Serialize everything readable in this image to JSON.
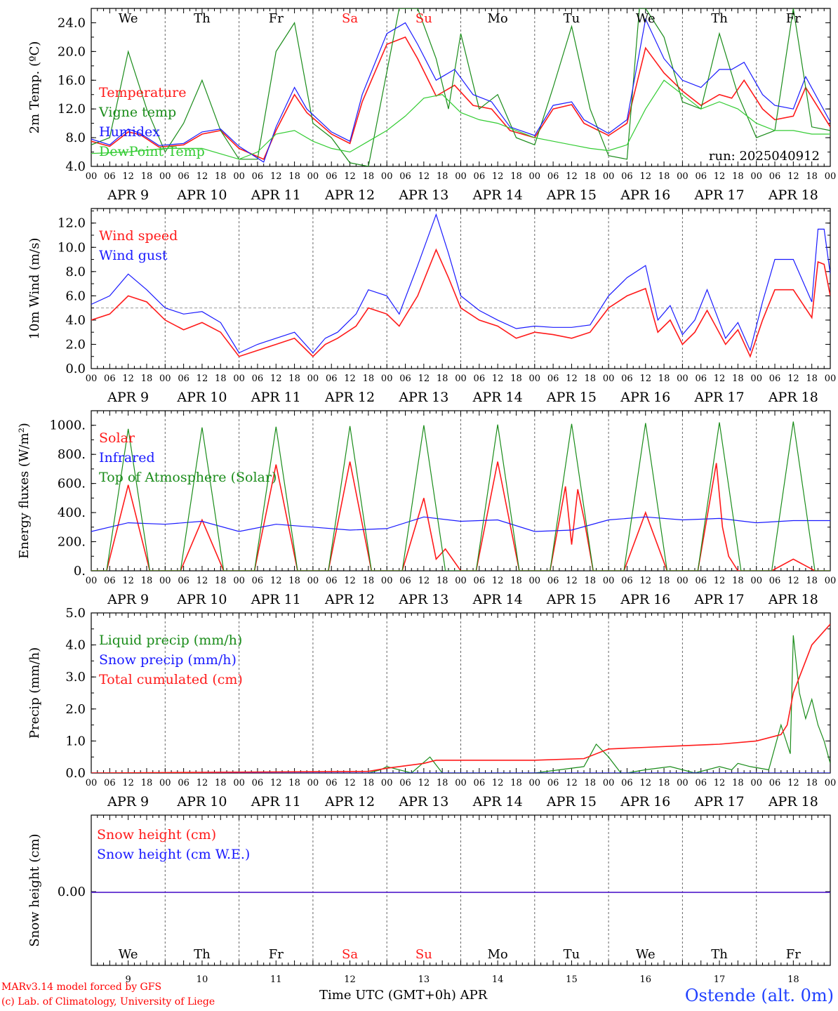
{
  "colors": {
    "red": "#ff1a1a",
    "green": "#1a8c1a",
    "blue": "#1a1aff",
    "lightgreen": "#33cc33",
    "axis": "#000000",
    "grid": "#666666"
  },
  "time_axis": {
    "hour_ticks": [
      "00",
      "06",
      "12",
      "18"
    ],
    "date_labels": [
      "APR  9",
      "APR 10",
      "APR 11",
      "APR 12",
      "APR 13",
      "APR 14",
      "APR 15",
      "APR 16",
      "APR 17",
      "APR 18"
    ],
    "weekdays": [
      "We",
      "Th",
      "Fr",
      "Sa",
      "Su",
      "Mo",
      "Tu",
      "We",
      "Th",
      "Fr"
    ],
    "weekend_index": [
      3,
      4
    ],
    "day_numbers": [
      "9",
      "10",
      "11",
      "12",
      "13",
      "14",
      "15",
      "16",
      "17",
      "18"
    ],
    "label": "Time UTC (GMT+0h)",
    "month": "APR"
  },
  "footer": {
    "model": "MARv3.14 model forced by GFS",
    "lab": "(c) Lab. of Climatology, University of Liege",
    "station": "Ostende (alt. 0m)"
  },
  "chart_data": [
    {
      "type": "line",
      "ylabel": "2m Temp. (ºC)",
      "ylim": [
        4,
        26
      ],
      "yticks": [
        "4.0",
        "8.0",
        "12.0",
        "16.0",
        "20.0",
        "24.0"
      ],
      "annotation": "run: 2025040912",
      "series": [
        {
          "name": "Temperature",
          "color": "red",
          "x": [
            0,
            6,
            12,
            16,
            22,
            30,
            36,
            42,
            48,
            56,
            60,
            66,
            70,
            78,
            84,
            88,
            96,
            102,
            106,
            112,
            118,
            124,
            130,
            136,
            144,
            150,
            156,
            160,
            168,
            174,
            180,
            186,
            192,
            198,
            204,
            208,
            212,
            218,
            222,
            228,
            232,
            240
          ],
          "y": [
            7.5,
            6.8,
            8.8,
            8.4,
            6.7,
            7.0,
            8.5,
            9.0,
            6.5,
            5.0,
            9.0,
            14.0,
            11.5,
            8.5,
            7.2,
            13.0,
            21.0,
            22.0,
            19.0,
            13.8,
            15.3,
            12.5,
            12.0,
            9.0,
            8.0,
            12.0,
            12.6,
            10.0,
            8.3,
            10.0,
            20.5,
            17.0,
            14.5,
            12.5,
            14.0,
            13.5,
            16.0,
            12.0,
            10.5,
            11.0,
            15.0,
            9.5
          ]
        },
        {
          "name": "Vigne temp",
          "color": "green",
          "x": [
            0,
            6,
            12,
            18,
            24,
            30,
            36,
            42,
            48,
            54,
            60,
            66,
            72,
            78,
            84,
            90,
            100,
            106,
            112,
            116,
            120,
            126,
            132,
            138,
            144,
            150,
            156,
            162,
            168,
            174,
            178,
            180,
            186,
            192,
            198,
            204,
            210,
            216,
            222,
            228,
            234,
            240
          ],
          "y": [
            7.0,
            8.0,
            20.0,
            12.0,
            6.0,
            10.0,
            16.0,
            9.0,
            5.0,
            5.0,
            20.0,
            24.0,
            10.0,
            8.0,
            4.5,
            4.0,
            26.0,
            26.0,
            19.0,
            12.0,
            22.5,
            12.0,
            14.0,
            8.0,
            7.0,
            15.0,
            23.5,
            12.0,
            5.5,
            5.0,
            26.0,
            26.0,
            22.0,
            13.0,
            12.0,
            22.5,
            14.0,
            8.0,
            9.0,
            26.0,
            9.5,
            9.0
          ]
        },
        {
          "name": "Humidex",
          "color": "blue",
          "x": [
            0,
            6,
            12,
            16,
            22,
            30,
            36,
            42,
            48,
            56,
            60,
            66,
            70,
            78,
            84,
            88,
            96,
            102,
            106,
            112,
            118,
            124,
            130,
            136,
            144,
            150,
            156,
            160,
            168,
            174,
            180,
            186,
            192,
            198,
            204,
            208,
            212,
            218,
            222,
            228,
            232,
            240
          ],
          "y": [
            7.8,
            7.0,
            9.2,
            8.6,
            6.9,
            7.2,
            8.8,
            9.2,
            6.8,
            4.6,
            9.5,
            15.0,
            12.0,
            8.8,
            7.5,
            14.0,
            22.5,
            24.0,
            21.0,
            16.0,
            17.5,
            14.0,
            13.0,
            9.5,
            8.3,
            12.5,
            13.0,
            10.5,
            8.6,
            10.5,
            24.5,
            19.0,
            16.0,
            15.0,
            17.5,
            17.5,
            18.5,
            14.0,
            12.5,
            12.0,
            16.5,
            10.2
          ]
        },
        {
          "name": "DewPoint Temp",
          "color": "lightgreen",
          "x": [
            0,
            12,
            24,
            36,
            48,
            54,
            60,
            66,
            72,
            78,
            84,
            90,
            96,
            102,
            108,
            114,
            120,
            126,
            132,
            138,
            144,
            150,
            156,
            162,
            168,
            174,
            180,
            186,
            192,
            198,
            204,
            210,
            216,
            222,
            228,
            234,
            240
          ],
          "y": [
            5.8,
            6.0,
            6.5,
            6.5,
            5.0,
            6.0,
            8.5,
            9.0,
            7.5,
            6.5,
            6.0,
            7.5,
            9.0,
            11.0,
            13.5,
            14.0,
            11.5,
            10.5,
            10.0,
            9.0,
            8.0,
            7.5,
            7.0,
            6.5,
            6.2,
            7.0,
            12.0,
            16.0,
            14.0,
            12.0,
            13.0,
            12.0,
            10.0,
            9.0,
            9.0,
            8.5,
            8.5
          ]
        }
      ]
    },
    {
      "type": "line",
      "ylabel": "10m Wind (m/s)",
      "ylim": [
        0,
        13.2
      ],
      "yticks": [
        "0.0",
        "2.0",
        "4.0",
        "6.0",
        "8.0",
        "10.0",
        "12.0"
      ],
      "reference_line": 5.0,
      "series": [
        {
          "name": "Wind speed",
          "color": "red",
          "x": [
            0,
            6,
            12,
            18,
            24,
            30,
            36,
            42,
            48,
            54,
            60,
            66,
            72,
            76,
            80,
            86,
            90,
            96,
            100,
            106,
            112,
            116,
            120,
            126,
            132,
            138,
            144,
            150,
            156,
            162,
            168,
            174,
            180,
            184,
            188,
            192,
            196,
            200,
            206,
            210,
            214,
            218,
            222,
            228,
            234,
            236,
            238,
            240
          ],
          "y": [
            4.0,
            4.5,
            6.0,
            5.5,
            4.0,
            3.2,
            3.8,
            3.0,
            1.0,
            1.5,
            2.0,
            2.5,
            1.0,
            2.0,
            2.5,
            3.5,
            5.0,
            4.5,
            3.5,
            6.0,
            9.8,
            7.5,
            5.0,
            4.0,
            3.5,
            2.5,
            3.0,
            2.8,
            2.5,
            3.0,
            5.0,
            6.0,
            6.6,
            3.0,
            4.0,
            2.0,
            3.0,
            4.8,
            2.0,
            3.2,
            1.0,
            4.0,
            6.5,
            6.5,
            4.2,
            8.8,
            8.6,
            6.0
          ]
        },
        {
          "name": "Wind gust",
          "color": "blue",
          "x": [
            0,
            6,
            12,
            18,
            24,
            30,
            36,
            42,
            48,
            54,
            60,
            66,
            72,
            76,
            80,
            86,
            90,
            96,
            100,
            106,
            112,
            116,
            120,
            126,
            132,
            138,
            144,
            150,
            156,
            162,
            168,
            174,
            180,
            184,
            188,
            192,
            196,
            200,
            206,
            210,
            214,
            218,
            222,
            228,
            234,
            236,
            238,
            240
          ],
          "y": [
            5.3,
            6.0,
            7.8,
            6.5,
            5.0,
            4.5,
            4.7,
            3.8,
            1.3,
            2.0,
            2.5,
            3.0,
            1.3,
            2.5,
            3.0,
            4.5,
            6.5,
            6.0,
            4.5,
            8.5,
            12.7,
            9.5,
            6.0,
            4.8,
            4.0,
            3.3,
            3.5,
            3.4,
            3.4,
            3.6,
            6.0,
            7.5,
            8.5,
            4.0,
            5.2,
            2.8,
            4.0,
            6.5,
            2.5,
            3.8,
            1.5,
            5.5,
            9.0,
            9.0,
            5.5,
            11.5,
            11.5,
            7.8
          ]
        }
      ]
    },
    {
      "type": "line",
      "ylabel": "Energy fluxes (W/m²)",
      "ylim": [
        0,
        1100
      ],
      "yticks": [
        "0.",
        "200.",
        "400.",
        "600.",
        "800.",
        "1000."
      ],
      "series": [
        {
          "name": "Solar",
          "color": "red",
          "x": [
            0,
            5,
            12,
            19,
            24,
            29,
            36,
            43,
            48,
            53,
            60,
            67,
            72,
            77,
            84,
            91,
            96,
            101,
            108,
            112,
            115,
            120,
            125,
            132,
            139,
            144,
            149,
            154,
            156,
            158,
            160,
            163,
            168,
            173,
            180,
            187,
            192,
            197,
            203,
            205,
            207,
            210,
            216,
            221,
            228,
            235,
            240
          ],
          "y": [
            0,
            0,
            590,
            0,
            0,
            0,
            350,
            0,
            0,
            0,
            730,
            0,
            0,
            0,
            750,
            0,
            0,
            0,
            500,
            80,
            150,
            0,
            0,
            750,
            0,
            0,
            0,
            580,
            180,
            560,
            360,
            0,
            0,
            0,
            400,
            0,
            0,
            0,
            740,
            300,
            100,
            0,
            0,
            0,
            80,
            0,
            0
          ]
        },
        {
          "name": "Infrared",
          "color": "blue",
          "x": [
            0,
            12,
            24,
            36,
            48,
            60,
            72,
            84,
            96,
            108,
            120,
            132,
            144,
            156,
            168,
            180,
            192,
            204,
            216,
            228,
            240
          ],
          "y": [
            270,
            330,
            320,
            340,
            270,
            320,
            300,
            280,
            290,
            370,
            340,
            350,
            270,
            280,
            350,
            370,
            350,
            360,
            330,
            345,
            345
          ]
        },
        {
          "name": "Top of Atmosphere (Solar)",
          "color": "green",
          "x": [
            0,
            5,
            12,
            19,
            24,
            29,
            36,
            43,
            48,
            53,
            60,
            67,
            72,
            77,
            84,
            91,
            96,
            101,
            108,
            115,
            120,
            125,
            132,
            139,
            144,
            149,
            156,
            163,
            168,
            173,
            180,
            187,
            192,
            197,
            204,
            211,
            216,
            221,
            228,
            235,
            240
          ],
          "y": [
            0,
            0,
            975,
            0,
            0,
            0,
            985,
            0,
            0,
            0,
            990,
            0,
            0,
            0,
            995,
            0,
            0,
            0,
            1000,
            0,
            0,
            0,
            1005,
            0,
            0,
            0,
            1010,
            0,
            0,
            0,
            1015,
            0,
            0,
            0,
            1020,
            0,
            0,
            0,
            1025,
            0,
            0
          ]
        }
      ]
    },
    {
      "type": "line",
      "ylabel": "Precip (mm/h)",
      "ylim": [
        0,
        5.0
      ],
      "yticks": [
        "0.0",
        "1.0",
        "2.0",
        "3.0",
        "4.0",
        "5.0"
      ],
      "series": [
        {
          "name": "Liquid precip (mm/h)",
          "color": "green",
          "x": [
            0,
            90,
            94,
            96,
            100,
            104,
            110,
            114,
            144,
            160,
            164,
            168,
            172,
            174,
            180,
            188,
            196,
            204,
            208,
            210,
            214,
            220,
            224,
            227,
            228,
            230,
            232,
            234,
            236,
            238,
            240
          ],
          "y": [
            0,
            0,
            0.1,
            0.2,
            0.1,
            0.0,
            0.5,
            0.0,
            0.0,
            0.2,
            0.9,
            0.5,
            0.0,
            0.0,
            0.1,
            0.2,
            0.0,
            0.2,
            0.1,
            0.3,
            0.2,
            0.1,
            1.5,
            0.6,
            4.3,
            2.5,
            1.7,
            2.3,
            1.5,
            1.0,
            0.3
          ]
        },
        {
          "name": "Snow precip (mm/h)",
          "color": "blue",
          "x": [
            0,
            240
          ],
          "y": [
            0,
            0
          ]
        },
        {
          "name": "Total cumulated (cm)",
          "color": "red",
          "x": [
            0,
            90,
            96,
            108,
            112,
            144,
            160,
            168,
            180,
            192,
            204,
            216,
            224,
            226,
            228,
            230,
            234,
            240
          ],
          "y": [
            0,
            0.05,
            0.15,
            0.3,
            0.4,
            0.4,
            0.45,
            0.75,
            0.8,
            0.85,
            0.9,
            1.0,
            1.2,
            1.5,
            2.5,
            3.0,
            4.0,
            4.65
          ]
        }
      ]
    },
    {
      "type": "line",
      "ylabel": "Snow height (cm)",
      "yticks": [
        "0.00"
      ],
      "series": [
        {
          "name": "Snow height (cm)",
          "color": "red",
          "x": [
            0,
            240
          ],
          "y": [
            0,
            0
          ]
        },
        {
          "name": "Snow height (cm W.E.)",
          "color": "blue",
          "x": [
            0,
            240
          ],
          "y": [
            0,
            0
          ]
        }
      ]
    }
  ]
}
